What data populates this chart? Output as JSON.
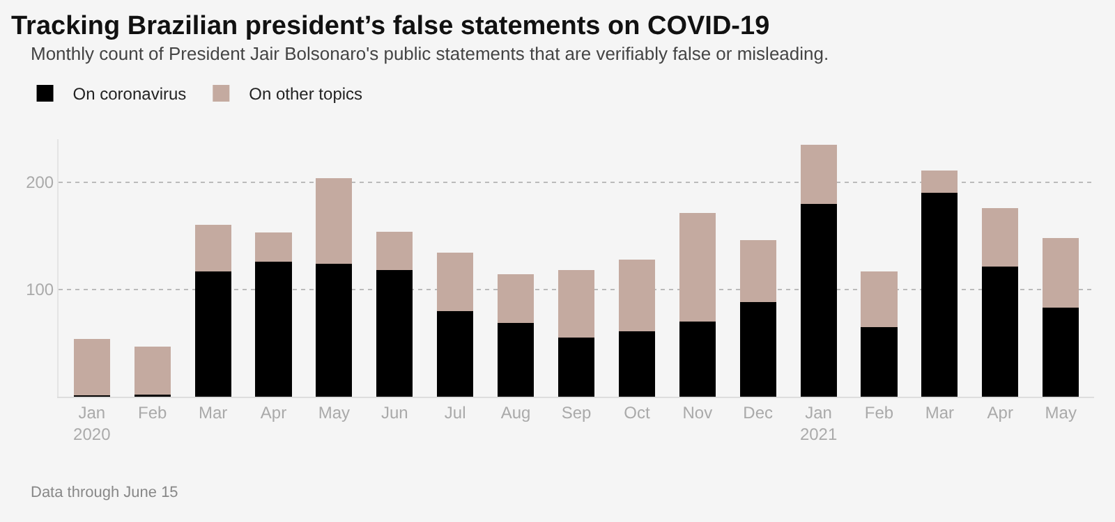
{
  "chart_data": {
    "type": "bar",
    "title": "Tracking Brazilian president’s false statements on COVID-19",
    "subtitle": "Monthly count of President Jair Bolsonaro's public statements that are verifiably false or misleading.",
    "categories": [
      "Jan\n2020",
      "Feb",
      "Mar",
      "Apr",
      "May",
      "Jun",
      "Jul",
      "Aug",
      "Sep",
      "Oct",
      "Nov",
      "Dec",
      "Jan\n2021",
      "Feb",
      "Mar",
      "Apr",
      "May"
    ],
    "stacked": true,
    "series": [
      {
        "name": "On coronavirus",
        "color": "#000000",
        "values": [
          1,
          2,
          117,
          126,
          124,
          118,
          80,
          69,
          55,
          61,
          70,
          88,
          180,
          65,
          190,
          121,
          83
        ]
      },
      {
        "name": "On other topics",
        "color": "#c4aaa0",
        "values": [
          53,
          45,
          43,
          27,
          80,
          36,
          54,
          45,
          63,
          67,
          101,
          58,
          55,
          52,
          21,
          55,
          65
        ]
      }
    ],
    "ylim": [
      0,
      240
    ],
    "yticks": [
      {
        "value": 0,
        "label": null
      },
      100,
      200
    ],
    "grid": "y",
    "legend": "top left",
    "annotations": [
      "Data through June 15"
    ]
  }
}
